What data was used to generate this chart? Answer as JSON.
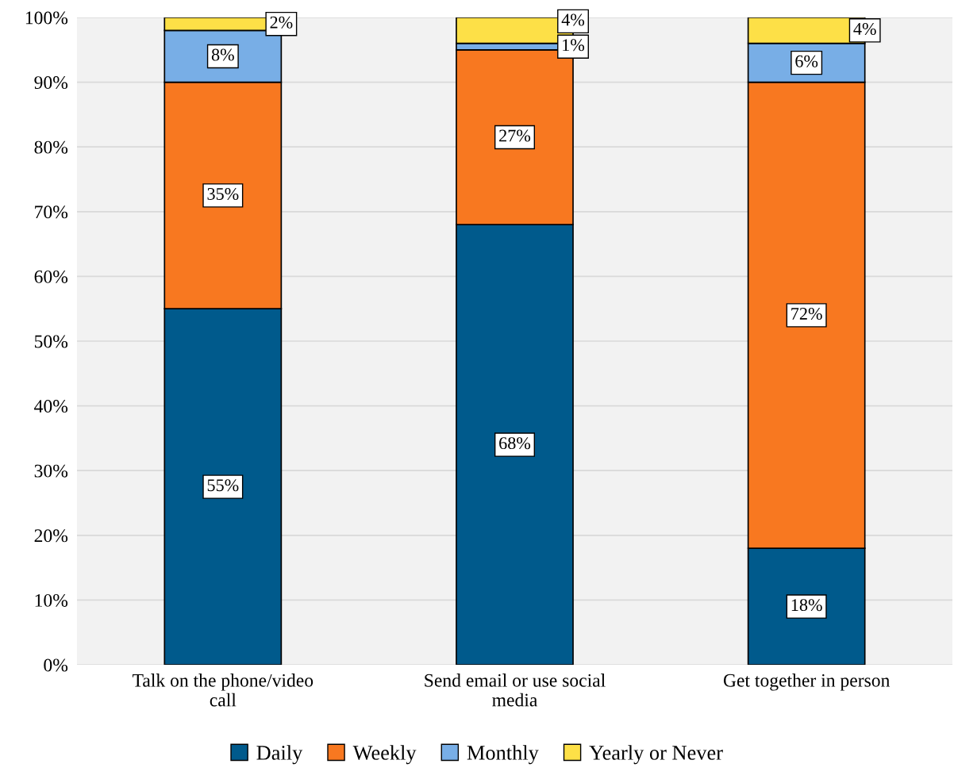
{
  "chart_data": {
    "type": "bar",
    "stacked": true,
    "categories": [
      "Talk on the phone/video call",
      "Send email or use social media",
      "Get together in person"
    ],
    "series": [
      {
        "name": "Daily",
        "color": "#005a8c",
        "values": [
          55,
          68,
          18
        ],
        "value_labels": [
          "55%",
          "68%",
          "18%"
        ]
      },
      {
        "name": "Weekly",
        "color": "#f87820",
        "values": [
          35,
          27,
          72
        ],
        "value_labels": [
          "35%",
          "27%",
          "72%"
        ]
      },
      {
        "name": "Monthly",
        "color": "#78aee6",
        "values": [
          8,
          1,
          6
        ],
        "value_labels": [
          "8%",
          "1%",
          "6%"
        ]
      },
      {
        "name": "Yearly or Never",
        "color": "#fde047",
        "values": [
          2,
          4,
          4
        ],
        "value_labels": [
          "2%",
          "4%",
          "4%"
        ]
      }
    ],
    "ylim": [
      0,
      100
    ],
    "yticks": [
      {
        "value": 0,
        "label": "0%"
      },
      {
        "value": 10,
        "label": "10%"
      },
      {
        "value": 20,
        "label": "20%"
      },
      {
        "value": 30,
        "label": "30%"
      },
      {
        "value": 40,
        "label": "40%"
      },
      {
        "value": 50,
        "label": "50%"
      },
      {
        "value": 60,
        "label": "60%"
      },
      {
        "value": 70,
        "label": "70%"
      },
      {
        "value": 80,
        "label": "80%"
      },
      {
        "value": 90,
        "label": "90%"
      },
      {
        "value": 100,
        "label": "100%"
      }
    ],
    "grid": "y",
    "legend": "bottom"
  }
}
